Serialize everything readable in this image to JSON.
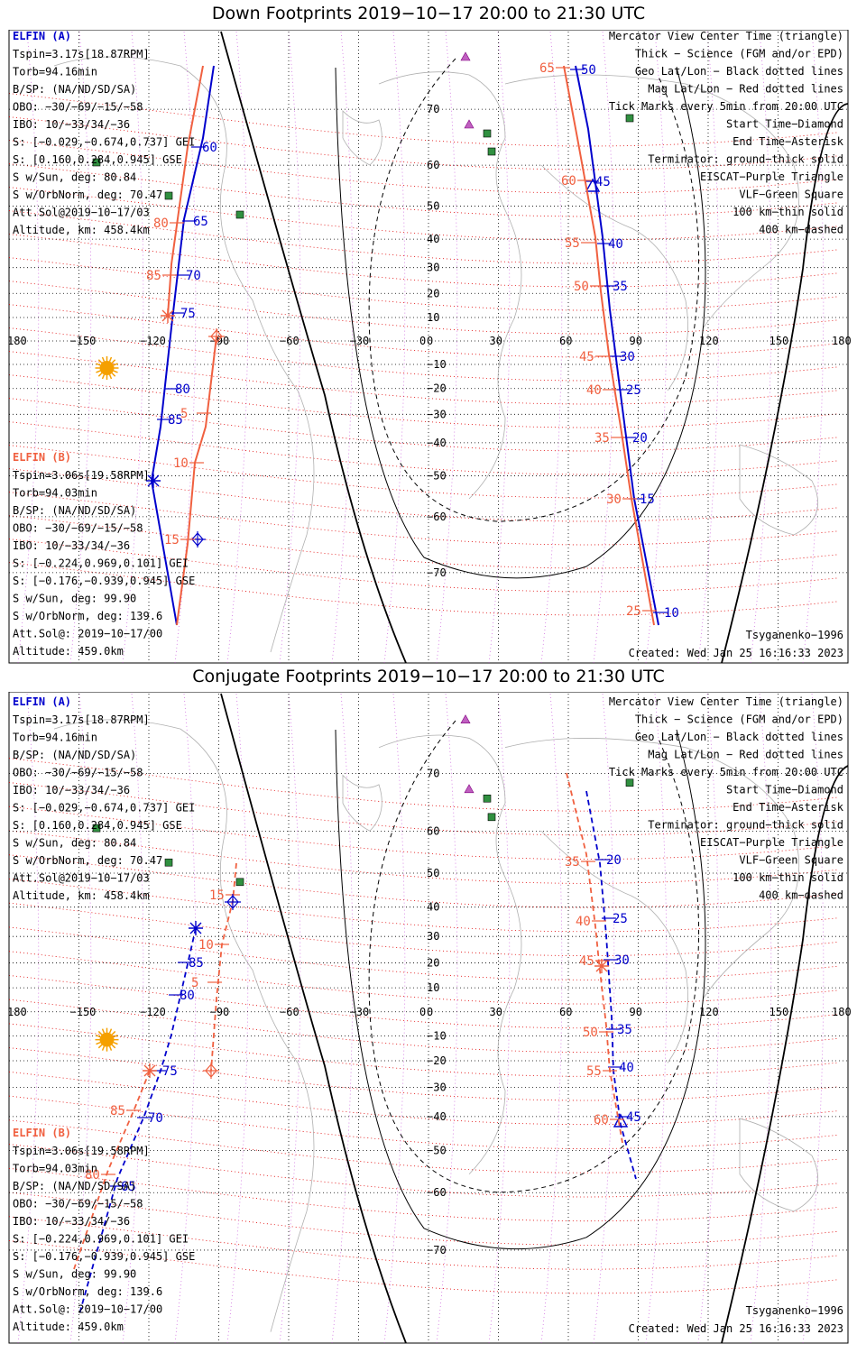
{
  "panels": [
    {
      "title": "Down Footprints 2019−10−17 20:00 to 21:30 UTC",
      "elfin_a": {
        "name": "ELFIN (A)",
        "lines": [
          "Tspin=3.17s[18.87RPM]",
          "Torb=94.16min",
          "B/SP: (NA/ND/SD/SA)",
          "OBO: −30/−69/−15/−58",
          "IBO: 10/−33/34/−36",
          "S: [−0.029,−0.674,0.737] GEI",
          "S: [0.160,0.284,0.945] GSE",
          "S w/Sun, deg: 80.84",
          "S w/OrbNorm, deg: 70.47",
          "Att.Sol@2019−10−17/03",
          "Altitude, km: 458.4km"
        ]
      },
      "elfin_b": {
        "name": "ELFIN (B)",
        "lines": [
          "Tspin=3.06s[19.58RPM]",
          "Torb=94.03min",
          "B/SP: (NA/ND/SD/SA)",
          "OBO: −30/−69/−15/−58",
          "IBO: 10/−33/34/−36",
          "S: [−0.224,0.969,0.101] GEI",
          "S: [−0.176,−0.939,0.945] GSE",
          "S w/Sun, deg: 99.90",
          "S w/OrbNorm, deg: 139.6",
          "Att.Sol@: 2019−10−17/00",
          "Altitude: 459.0km"
        ]
      },
      "legend": [
        {
          "text": "Mercator View Center Time (triangle)",
          "color": "#000000"
        },
        {
          "text": "Thick − Science (FGM and/or EPD)",
          "color": "#000000"
        },
        {
          "text": "Geo Lat/Lon − Black dotted lines",
          "color": "#000000"
        },
        {
          "text": "Mag Lat/Lon − Red dotted lines",
          "color": "#e00000"
        },
        {
          "text": "Tick Marks every 5min from 20:00 UTC",
          "color": "#000000"
        },
        {
          "text": "Start Time−Diamond",
          "color": "#000000"
        },
        {
          "text": "End Time−Asterisk",
          "color": "#000000"
        },
        {
          "text": "Terminator: ground−thick solid",
          "color": "#000000"
        },
        {
          "text": "EISCAT−Purple Triangle",
          "color": "#c060c0"
        },
        {
          "text": "VLF−Green Square",
          "color": "#309040"
        },
        {
          "text": "100 km−thin solid",
          "color": "#000000"
        },
        {
          "text": "400 km−dashed",
          "color": "#000000"
        }
      ],
      "model": "Tsyganenko−1996",
      "created": "Created: Wed Jan 25 16:16:33 2023"
    },
    {
      "title": "Conjugate Footprints 2019−10−17 20:00 to 21:30 UTC",
      "model": "Tsyganenko−1996",
      "created": "Created: Wed Jan 25 16:16:33 2023"
    }
  ],
  "axes": {
    "lon_ticks": [
      "180",
      "−150",
      "−120",
      "−90",
      "−60",
      "−30",
      "0",
      "30",
      "60",
      "90",
      "120",
      "150",
      "180"
    ],
    "lat_ticks": [
      "70",
      "60",
      "50",
      "40",
      "30",
      "20",
      "10",
      "0",
      "−10",
      "−20",
      "−30",
      "−40",
      "−50",
      "−60",
      "−70"
    ]
  },
  "colors": {
    "elfin_a": "#0000cc",
    "elfin_b": "#f06040",
    "mag_grid": "#e00000",
    "eiscat": "#c060c0",
    "vlf": "#309040",
    "sun": "#f5a000"
  },
  "track_labels": {
    "down_a_west": [
      "60",
      "65",
      "70",
      "75",
      "80",
      "85"
    ],
    "down_b_west_pre": [
      "80",
      "85"
    ],
    "down_b_west": [
      "5",
      "10",
      "15"
    ],
    "down_a_east": [
      "50",
      "45",
      "40",
      "35",
      "30",
      "25",
      "20",
      "15",
      "10"
    ],
    "down_b_east": [
      "65",
      "60",
      "55",
      "50",
      "45",
      "40",
      "35",
      "30",
      "25"
    ],
    "conj_a_west": [
      "85",
      "80",
      "75",
      "70",
      "65"
    ],
    "conj_b_west": [
      "15",
      "10",
      "5",
      "85",
      "80"
    ],
    "conj_a_east": [
      "20",
      "25",
      "30",
      "35",
      "40",
      "45"
    ],
    "conj_b_east": [
      "35",
      "40",
      "45",
      "50",
      "55",
      "60"
    ]
  },
  "chart_data": [
    {
      "type": "map",
      "title": "Down Footprints 2019−10−17 20:00 to 21:30 UTC",
      "projection": "Mercator",
      "xlim": [
        -180,
        180
      ],
      "ylim": [
        -85,
        85
      ],
      "series": [
        {
          "name": "ELFIN (A)",
          "points": [
            {
              "lon": -112,
              "lat": 62,
              "label": "60"
            },
            {
              "lon": -115,
              "lat": 52,
              "label": "65"
            },
            {
              "lon": -118,
              "lat": 40,
              "label": "70"
            },
            {
              "lon": -120,
              "lat": 12,
              "label": "75"
            },
            {
              "lon": -128,
              "lat": -25,
              "label": "80"
            },
            {
              "lon": -133,
              "lat": -45,
              "label": "85"
            },
            {
              "lon": -148,
              "lat": -70
            },
            {
              "lon": 70,
              "lat": 70,
              "label": "50"
            },
            {
              "lon": 73,
              "lat": 59,
              "label": "45"
            },
            {
              "lon": 76,
              "lat": 46,
              "label": "40"
            },
            {
              "lon": 77,
              "lat": 33,
              "label": "35"
            },
            {
              "lon": 80,
              "lat": -10,
              "label": "30"
            },
            {
              "lon": 82,
              "lat": -25,
              "label": "25"
            },
            {
              "lon": 84,
              "lat": -42,
              "label": "20"
            },
            {
              "lon": 86,
              "lat": -60,
              "label": "15"
            },
            {
              "lon": 90,
              "lat": -80,
              "label": "10"
            }
          ]
        },
        {
          "name": "ELFIN (B)",
          "points": [
            {
              "lon": -125,
              "lat": 58,
              "label": "80"
            },
            {
              "lon": -125,
              "lat": 32,
              "label": "85"
            },
            {
              "lon": -106,
              "lat": 0
            },
            {
              "lon": -111,
              "lat": -30,
              "label": "5"
            },
            {
              "lon": -112,
              "lat": -48,
              "label": "10"
            },
            {
              "lon": -117,
              "lat": -68,
              "label": "15"
            },
            {
              "lon": 64,
              "lat": 70,
              "label": "65"
            },
            {
              "lon": 67,
              "lat": 58,
              "label": "60"
            },
            {
              "lon": 70,
              "lat": 46,
              "label": "55"
            },
            {
              "lon": 72,
              "lat": 33,
              "label": "50"
            },
            {
              "lon": 75,
              "lat": -9,
              "label": "45"
            },
            {
              "lon": 75,
              "lat": -24,
              "label": "40"
            },
            {
              "lon": 77,
              "lat": -41,
              "label": "35"
            },
            {
              "lon": 80,
              "lat": -58,
              "label": "30"
            },
            {
              "lon": 86,
              "lat": -79,
              "label": "25"
            }
          ]
        }
      ]
    },
    {
      "type": "map",
      "title": "Conjugate Footprints 2019−10−17 20:00 to 21:30 UTC",
      "projection": "Mercator",
      "xlim": [
        -180,
        180
      ],
      "ylim": [
        -85,
        85
      ],
      "series": [
        {
          "name": "ELFIN (A)",
          "points": [
            {
              "lon": -110,
              "lat": 25,
              "label": "85"
            },
            {
              "lon": -115,
              "lat": 15,
              "label": "80"
            },
            {
              "lon": -120,
              "lat": -25,
              "label": "75"
            },
            {
              "lon": -125,
              "lat": -42,
              "label": "70"
            },
            {
              "lon": -135,
              "lat": -60,
              "label": "65"
            },
            {
              "lon": 72,
              "lat": 50,
              "label": "20"
            },
            {
              "lon": 76,
              "lat": 35,
              "label": "25"
            },
            {
              "lon": 78,
              "lat": 20,
              "label": "30"
            },
            {
              "lon": 80,
              "lat": -10,
              "label": "35"
            },
            {
              "lon": 82,
              "lat": -25,
              "label": "40"
            },
            {
              "lon": 85,
              "lat": -45,
              "label": "45"
            }
          ]
        },
        {
          "name": "ELFIN (B)",
          "points": [
            {
              "lon": -95,
              "lat": 47,
              "label": "15"
            },
            {
              "lon": -97,
              "lat": 27,
              "label": "10"
            },
            {
              "lon": -98,
              "lat": 12,
              "label": "5"
            },
            {
              "lon": -135,
              "lat": -38,
              "label": "85"
            },
            {
              "lon": -142,
              "lat": -55,
              "label": "80"
            },
            {
              "lon": 62,
              "lat": 52,
              "label": "35"
            },
            {
              "lon": 66,
              "lat": 33,
              "label": "40"
            },
            {
              "lon": 70,
              "lat": 19,
              "label": "45"
            },
            {
              "lon": 71,
              "lat": -9,
              "label": "50"
            },
            {
              "lon": 72,
              "lat": -24,
              "label": "55"
            },
            {
              "lon": 75,
              "lat": -44,
              "label": "60"
            }
          ]
        }
      ]
    }
  ]
}
